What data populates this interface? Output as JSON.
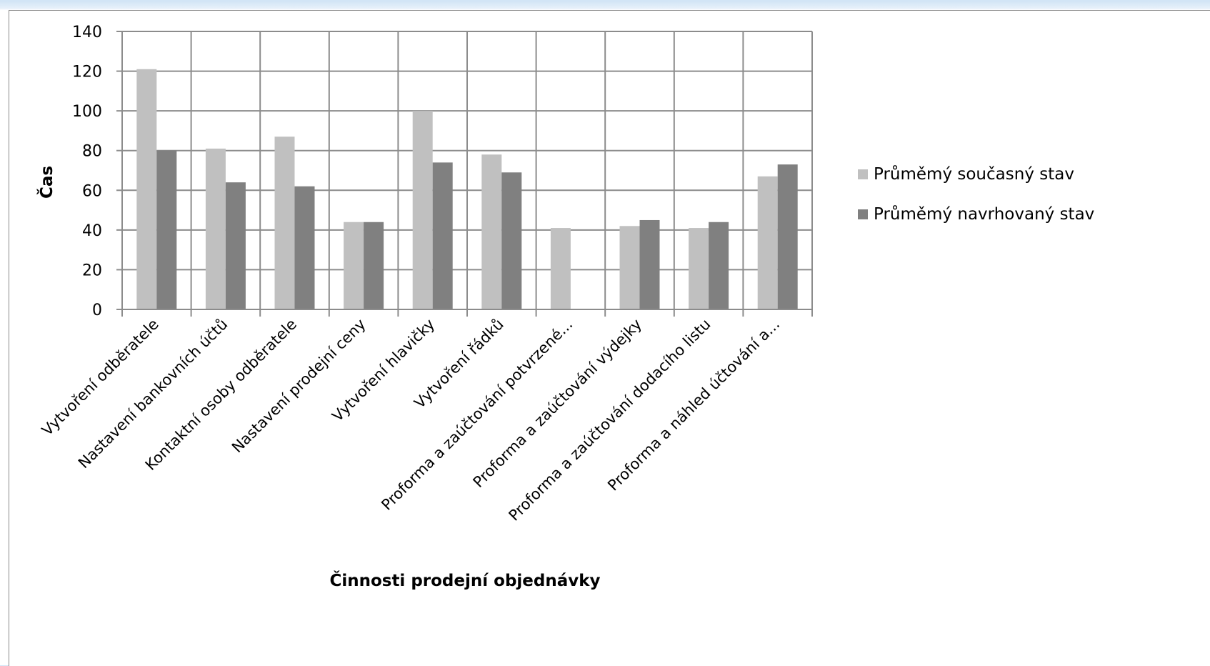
{
  "chart_data": {
    "type": "bar",
    "title": "",
    "xlabel": "Činnosti prodejní objednávky",
    "ylabel": "Čas",
    "ylim": [
      0,
      140
    ],
    "yticks": [
      0,
      20,
      40,
      60,
      80,
      100,
      120,
      140
    ],
    "grid": true,
    "legend_position": "right",
    "categories": [
      "Vytvoření odběratele",
      "Nastavení bankovních účtů",
      "Kontaktní osoby odběratele",
      "Nastavení prodejní ceny",
      "Vytvoření hlavičky",
      "Vytvoření řádků",
      "Proforma a zaúčtování potvrzené...",
      "Proforma a zaúčtování výdejky",
      "Proforma a zaúčtování dodacího listu",
      "Proforma a náhled účtování a..."
    ],
    "series": [
      {
        "name": "Průměmý současný stav",
        "color": "#c0c0c0",
        "values": [
          121,
          81,
          87,
          44,
          100,
          78,
          41,
          42,
          41,
          67
        ]
      },
      {
        "name": "Průměmý navrhovaný stav",
        "color": "#808080",
        "values": [
          80,
          64,
          62,
          44,
          74,
          69,
          null,
          45,
          44,
          73
        ]
      }
    ]
  }
}
